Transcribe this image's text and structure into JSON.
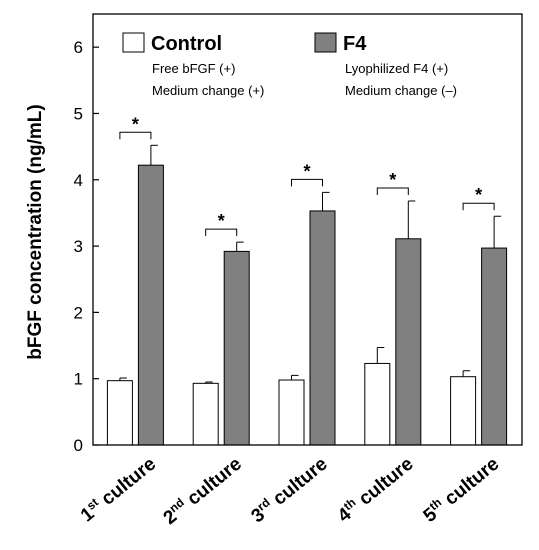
{
  "chart_data": {
    "type": "bar",
    "ylabel": "bFGF concentration (ng/mL)",
    "xlabel": "",
    "ylim": [
      0,
      6.5
    ],
    "yticks": [
      "0",
      "1",
      "2",
      "3",
      "4",
      "5",
      "6"
    ],
    "grid": false,
    "legend_position": "top",
    "categories": [
      {
        "pre": "1",
        "sup": "st",
        "post": " culture"
      },
      {
        "pre": "2",
        "sup": "nd",
        "post": " culture"
      },
      {
        "pre": "3",
        "sup": "rd",
        "post": " culture"
      },
      {
        "pre": "4",
        "sup": "th",
        "post": " culture"
      },
      {
        "pre": "5",
        "sup": "th",
        "post": " culture"
      }
    ],
    "series": [
      {
        "name": "Control",
        "color": "#ffffff",
        "notes": [
          "Free bFGF (+)",
          "Medium change (+)"
        ],
        "values": [
          0.97,
          0.93,
          0.98,
          1.23,
          1.03
        ],
        "errors": [
          0.04,
          0.02,
          0.07,
          0.24,
          0.09
        ]
      },
      {
        "name": "F4",
        "color": "#808080",
        "notes": [
          "Lyophilized F4 (+)",
          "Medium change (–)"
        ],
        "values": [
          4.22,
          2.92,
          3.53,
          3.11,
          2.97
        ],
        "errors": [
          0.3,
          0.14,
          0.28,
          0.57,
          0.48
        ]
      }
    ],
    "significance": [
      "*",
      "*",
      "*",
      "*",
      "*"
    ]
  }
}
